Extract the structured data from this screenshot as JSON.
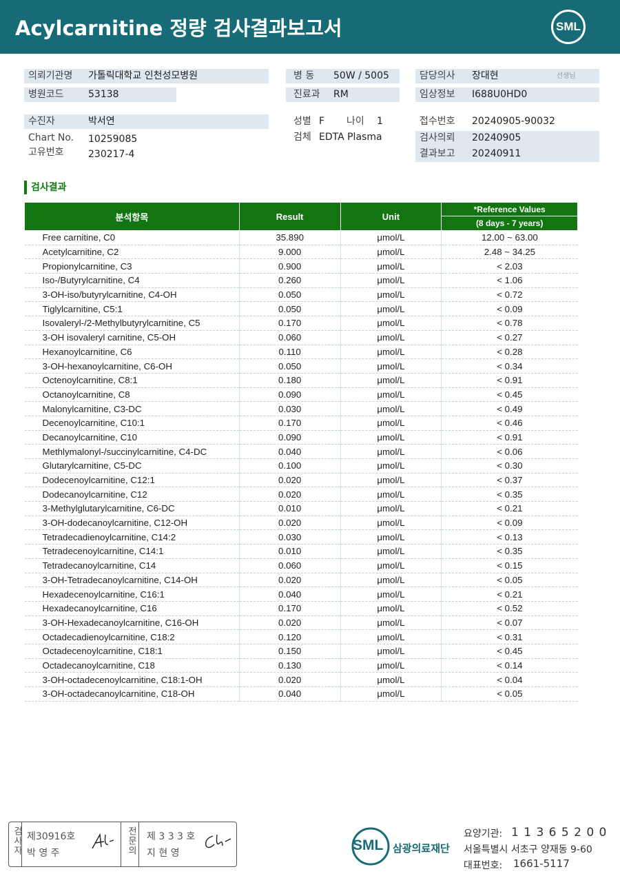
{
  "header": {
    "title": "Acylcarnitine 정량 검사결과보고서",
    "logo": "SML"
  },
  "info": {
    "institution": {
      "label": "의뢰기관명",
      "value": "가톨릭대학교 인천성모병원"
    },
    "hospital_code": {
      "label": "병원코드",
      "value": "53138"
    },
    "ward": {
      "label": "병 동",
      "value": "50W / 5005"
    },
    "department": {
      "label": "진료과",
      "value": "RM"
    },
    "doctor": {
      "label": "담당의사",
      "value": "장대현",
      "suffix": "선생님"
    },
    "clinical_info": {
      "label": "임상정보",
      "value": "I688U0HD0"
    },
    "patient": {
      "label": "수진자",
      "value": "박서연"
    },
    "chart_no": {
      "label": "Chart No.",
      "value": "10259085"
    },
    "unique_no": {
      "label": "고유번호",
      "value": "230217-4"
    },
    "sex": {
      "label": "성별",
      "value": "F"
    },
    "age": {
      "label": "나이",
      "value": "1"
    },
    "specimen": {
      "label": "검체",
      "value": "EDTA Plasma"
    },
    "receipt_no": {
      "label": "접수번호",
      "value": "20240905-90032"
    },
    "request_date": {
      "label": "검사의뢰",
      "value": "20240905"
    },
    "report_date": {
      "label": "결과보고",
      "value": "20240911"
    }
  },
  "section": {
    "title": "검사결과"
  },
  "table": {
    "headers": {
      "item": "분석항목",
      "result": "Result",
      "unit": "Unit",
      "reference": "*Reference Values",
      "reference_range": "(8 days - 7 years)"
    },
    "rows": [
      [
        "Free carnitine, C0",
        "35.890",
        "μmol/L",
        "12.00 ~ 63.00"
      ],
      [
        "Acetylcarnitine, C2",
        "9.000",
        "μmol/L",
        "2.48 ~ 34.25"
      ],
      [
        "Propionylcarnitine, C3",
        "0.900",
        "μmol/L",
        "< 2.03"
      ],
      [
        "Iso-/Butyrylcarnitine, C4",
        "0.260",
        "μmol/L",
        "< 1.06"
      ],
      [
        "3-OH-iso/butyrylcarnitine, C4-OH",
        "0.050",
        "μmol/L",
        "< 0.72"
      ],
      [
        "Tiglylcarnitine, C5:1",
        "0.050",
        "μmol/L",
        "< 0.09"
      ],
      [
        "Isovaleryl-/2-Methylbutyrylcarnitine, C5",
        "0.170",
        "μmol/L",
        "< 0.78"
      ],
      [
        "3-OH isovaleryl carnitine, C5-OH",
        "0.060",
        "μmol/L",
        "< 0.27"
      ],
      [
        "Hexanoylcarnitine, C6",
        "0.110",
        "μmol/L",
        "< 0.28"
      ],
      [
        "3-OH-hexanoylcarnitine, C6-OH",
        "0.050",
        "μmol/L",
        "< 0.34"
      ],
      [
        "Octenoylcarnitine, C8:1",
        "0.180",
        "μmol/L",
        "< 0.91"
      ],
      [
        "Octanoylcarnitine, C8",
        "0.090",
        "μmol/L",
        "< 0.45"
      ],
      [
        "Malonylcarnitine, C3-DC",
        "0.030",
        "μmol/L",
        "< 0.49"
      ],
      [
        "Decenoylcarnitine, C10:1",
        "0.170",
        "μmol/L",
        "< 0.46"
      ],
      [
        "Decanoylcarnitine, C10",
        "0.090",
        "μmol/L",
        "< 0.91"
      ],
      [
        "Methlymalonyl-/succinylcarnitine, C4-DC",
        "0.040",
        "μmol/L",
        "< 0.06"
      ],
      [
        "Glutarylcarnitine, C5-DC",
        "0.100",
        "μmol/L",
        "< 0.30"
      ],
      [
        "Dodecenoylcarnitine, C12:1",
        "0.020",
        "μmol/L",
        "< 0.37"
      ],
      [
        "Dodecanoylcarnitine, C12",
        "0.020",
        "μmol/L",
        "< 0.35"
      ],
      [
        "3-Methylglutarylcarnitine, C6-DC",
        "0.010",
        "μmol/L",
        "< 0.21"
      ],
      [
        "3-OH-dodecanoylcarnitine, C12-OH",
        "0.020",
        "μmol/L",
        "< 0.09"
      ],
      [
        "Tetradecadienoylcarnitine, C14:2",
        "0.030",
        "μmol/L",
        "< 0.13"
      ],
      [
        "Tetradecenoylcarnitine, C14:1",
        "0.010",
        "μmol/L",
        "< 0.35"
      ],
      [
        "Tetradecanoylcarnitine, C14",
        "0.060",
        "μmol/L",
        "< 0.15"
      ],
      [
        "3-OH-Tetradecanoylcarnitine, C14-OH",
        "0.020",
        "μmol/L",
        "< 0.05"
      ],
      [
        "Hexadecenoylcarnitine, C16:1",
        "0.040",
        "μmol/L",
        "< 0.21"
      ],
      [
        "Hexadecanoylcarnitine, C16",
        "0.170",
        "μmol/L",
        "< 0.52"
      ],
      [
        "3-OH-Hexadecanoylcarnitine, C16-OH",
        "0.020",
        "μmol/L",
        "< 0.07"
      ],
      [
        "Octadecadienoylcarnitine, C18:2",
        "0.120",
        "μmol/L",
        "< 0.31"
      ],
      [
        "Octadecenoylcarnitine, C18:1",
        "0.150",
        "μmol/L",
        "< 0.45"
      ],
      [
        "Octadecanoylcarnitine, C18",
        "0.130",
        "μmol/L",
        "< 0.14"
      ],
      [
        "3-OH-octadecenoylcarnitine, C18:1-OH",
        "0.020",
        "μmol/L",
        "< 0.04"
      ],
      [
        "3-OH-octadecanoylcarnitine, C18-OH",
        "0.040",
        "μmol/L",
        "< 0.05"
      ]
    ]
  },
  "footer": {
    "inspector": {
      "label": "검사자",
      "number": "제30916호",
      "name": "박 영 주"
    },
    "specialist": {
      "label": "전문의",
      "number": "제 3 3 3 호",
      "name": "지 현 영"
    },
    "company": {
      "logo": "SML",
      "name": "삼광의료재단"
    },
    "care_number": {
      "label": "요양기관:",
      "value": "1 1 3 6 5 2 0 0"
    },
    "address": "서울특별시 서초구 양재동 9-60",
    "phone": {
      "label": "대표번호:",
      "value": "1661-5117"
    }
  }
}
